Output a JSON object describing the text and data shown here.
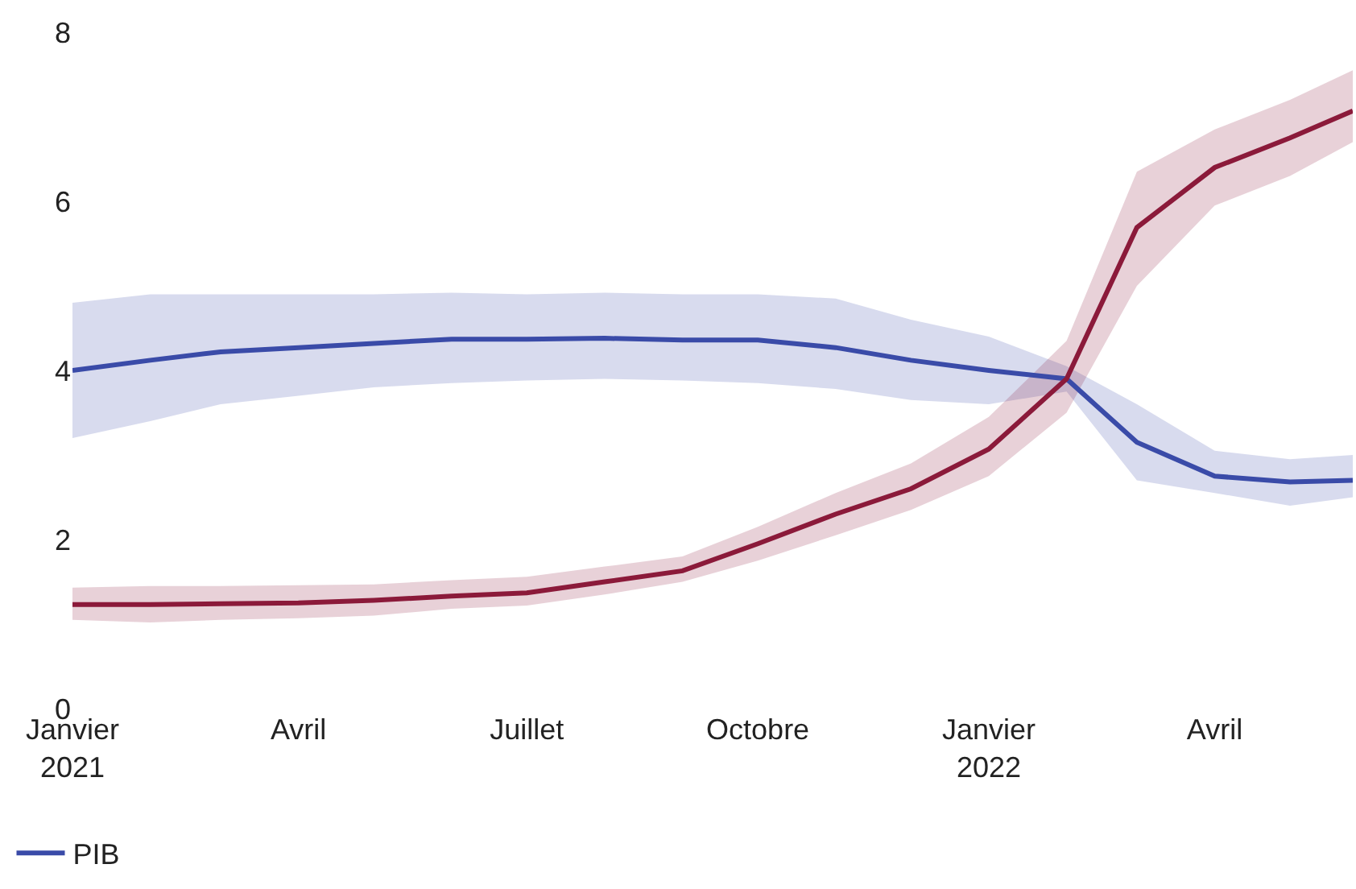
{
  "chart_data": {
    "type": "line",
    "x": [
      "2021-01-01",
      "2021-02-01",
      "2021-03-01",
      "2021-04-01",
      "2021-05-01",
      "2021-06-01",
      "2021-07-01",
      "2021-08-01",
      "2021-09-01",
      "2021-10-01",
      "2021-11-01",
      "2021-12-01",
      "2022-01-01",
      "2022-02-01",
      "2022-03-01",
      "2022-04-01",
      "2022-05-01",
      "2022-05-26"
    ],
    "series": [
      {
        "name": "PIB",
        "color": "#3a4ba8",
        "values": [
          4.0,
          4.12,
          4.22,
          4.27,
          4.32,
          4.37,
          4.37,
          4.38,
          4.36,
          4.36,
          4.27,
          4.12,
          4.0,
          3.9,
          3.15,
          2.75,
          2.68,
          2.7
        ],
        "lower": [
          3.2,
          3.4,
          3.6,
          3.7,
          3.8,
          3.85,
          3.88,
          3.9,
          3.88,
          3.85,
          3.78,
          3.65,
          3.6,
          3.75,
          2.7,
          2.55,
          2.4,
          2.5
        ],
        "upper": [
          4.8,
          4.9,
          4.9,
          4.9,
          4.9,
          4.92,
          4.9,
          4.92,
          4.9,
          4.9,
          4.85,
          4.6,
          4.4,
          4.05,
          3.6,
          3.05,
          2.95,
          3.0
        ]
      },
      {
        "color": "#8b1a3a",
        "values": [
          1.23,
          1.23,
          1.24,
          1.25,
          1.28,
          1.33,
          1.37,
          1.5,
          1.63,
          1.95,
          2.3,
          2.6,
          3.07,
          3.9,
          5.69,
          6.4,
          6.75,
          7.07
        ],
        "lower": [
          1.05,
          1.02,
          1.05,
          1.07,
          1.1,
          1.18,
          1.22,
          1.35,
          1.5,
          1.75,
          2.05,
          2.35,
          2.75,
          3.5,
          5.0,
          5.95,
          6.3,
          6.7
        ],
        "upper": [
          1.43,
          1.45,
          1.45,
          1.46,
          1.47,
          1.52,
          1.56,
          1.68,
          1.8,
          2.15,
          2.55,
          2.9,
          3.45,
          4.35,
          6.35,
          6.85,
          7.2,
          7.55
        ]
      }
    ],
    "xlim": [
      "2021-01-01",
      "2022-05-26"
    ],
    "xticks": [
      {
        "value": "2021-01-01",
        "label": "Janvier\n2021"
      },
      {
        "value": "2021-04-01",
        "label": "Avril"
      },
      {
        "value": "2021-07-01",
        "label": "Juillet"
      },
      {
        "value": "2021-10-01",
        "label": "Octobre"
      },
      {
        "value": "2022-01-01",
        "label": "Janvier\n2022"
      },
      {
        "value": "2022-04-01",
        "label": "Avril"
      }
    ],
    "ylim": [
      0,
      8
    ],
    "yticks": [
      0,
      2,
      4,
      6,
      8
    ],
    "grid": false,
    "legend": "bottom left",
    "line_style": "solid",
    "marker": "none"
  }
}
